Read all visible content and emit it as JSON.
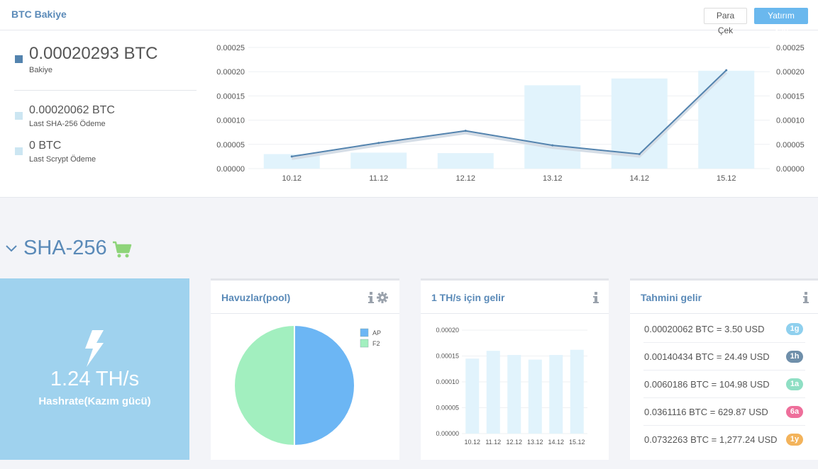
{
  "btc_panel": {
    "title": "BTC Bakiye",
    "withdraw_label": "Para Çek",
    "invest_label": "Yatırım Yap",
    "balance_value": "0.00020293 BTC",
    "balance_label": "Bakiye",
    "sha_payment_value": "0.00020062 BTC",
    "sha_payment_label": "Last SHA-256 Ödeme",
    "scrypt_payment_value": "0 BTC",
    "scrypt_payment_label": "Last Scrypt Ödeme",
    "colors": {
      "balance": "#5383ae",
      "sha": "#cce6f2",
      "scrypt": "#cce6f2",
      "bar": "#e1f3fc",
      "line": "#5383ae"
    }
  },
  "chart_data": [
    {
      "type": "bar",
      "categories": [
        "10.12",
        "11.12",
        "12.12",
        "13.12",
        "14.12",
        "15.12"
      ],
      "series": [
        {
          "type": "bar",
          "values": [
            3e-05,
            3.3e-05,
            3.2e-05,
            0.000172,
            0.000186,
            0.000202
          ]
        },
        {
          "type": "line",
          "values": [
            2.5e-05,
            5.3e-05,
            7.8e-05,
            4.8e-05,
            3e-05,
            0.000203
          ]
        }
      ],
      "yticks": [
        "0.00000",
        "0.00005",
        "0.00010",
        "0.00015",
        "0.00020",
        "0.00025"
      ],
      "ylim": [
        0,
        0.00025
      ],
      "grid": true
    },
    {
      "type": "pie",
      "labels": [
        "AP",
        "F2"
      ],
      "values": [
        50,
        50
      ],
      "colors": [
        "#6cb6f4",
        "#a2efbf"
      ],
      "legend": "top-right"
    },
    {
      "type": "bar",
      "categories": [
        "10.12",
        "11.12",
        "12.12",
        "13.12",
        "14.12",
        "15.12"
      ],
      "values": [
        0.000145,
        0.00016,
        0.000152,
        0.000143,
        0.000152,
        0.000162
      ],
      "yticks": [
        "0.00000",
        "0.00005",
        "0.00010",
        "0.00015",
        "0.00020"
      ],
      "ylim": [
        0,
        0.0002
      ],
      "grid": true
    }
  ],
  "sha_section": {
    "title": "SHA-256",
    "hashrate_value": "1.24 TH/s",
    "hashrate_label": "Hashrate(Kazım gücü)"
  },
  "pool_card": {
    "title": "Havuzlar(pool)"
  },
  "income_card": {
    "title": "1 TH/s için gelir"
  },
  "earnings_card": {
    "title": "Tahmini gelir",
    "rows": [
      {
        "text": "0.00020062 BTC = 3.50 USD",
        "badge": "1g",
        "color": "#8fd0ee"
      },
      {
        "text": "0.00140434 BTC = 24.49 USD",
        "badge": "1h",
        "color": "#6f8faa"
      },
      {
        "text": "0.0060186 BTC = 104.98 USD",
        "badge": "1a",
        "color": "#8fdfc4"
      },
      {
        "text": "0.0361116 BTC = 629.87 USD",
        "badge": "6a",
        "color": "#ee6f9b"
      },
      {
        "text": "0.0732263 BTC = 1,277.24 USD",
        "badge": "1y",
        "color": "#f3b35b"
      }
    ]
  }
}
